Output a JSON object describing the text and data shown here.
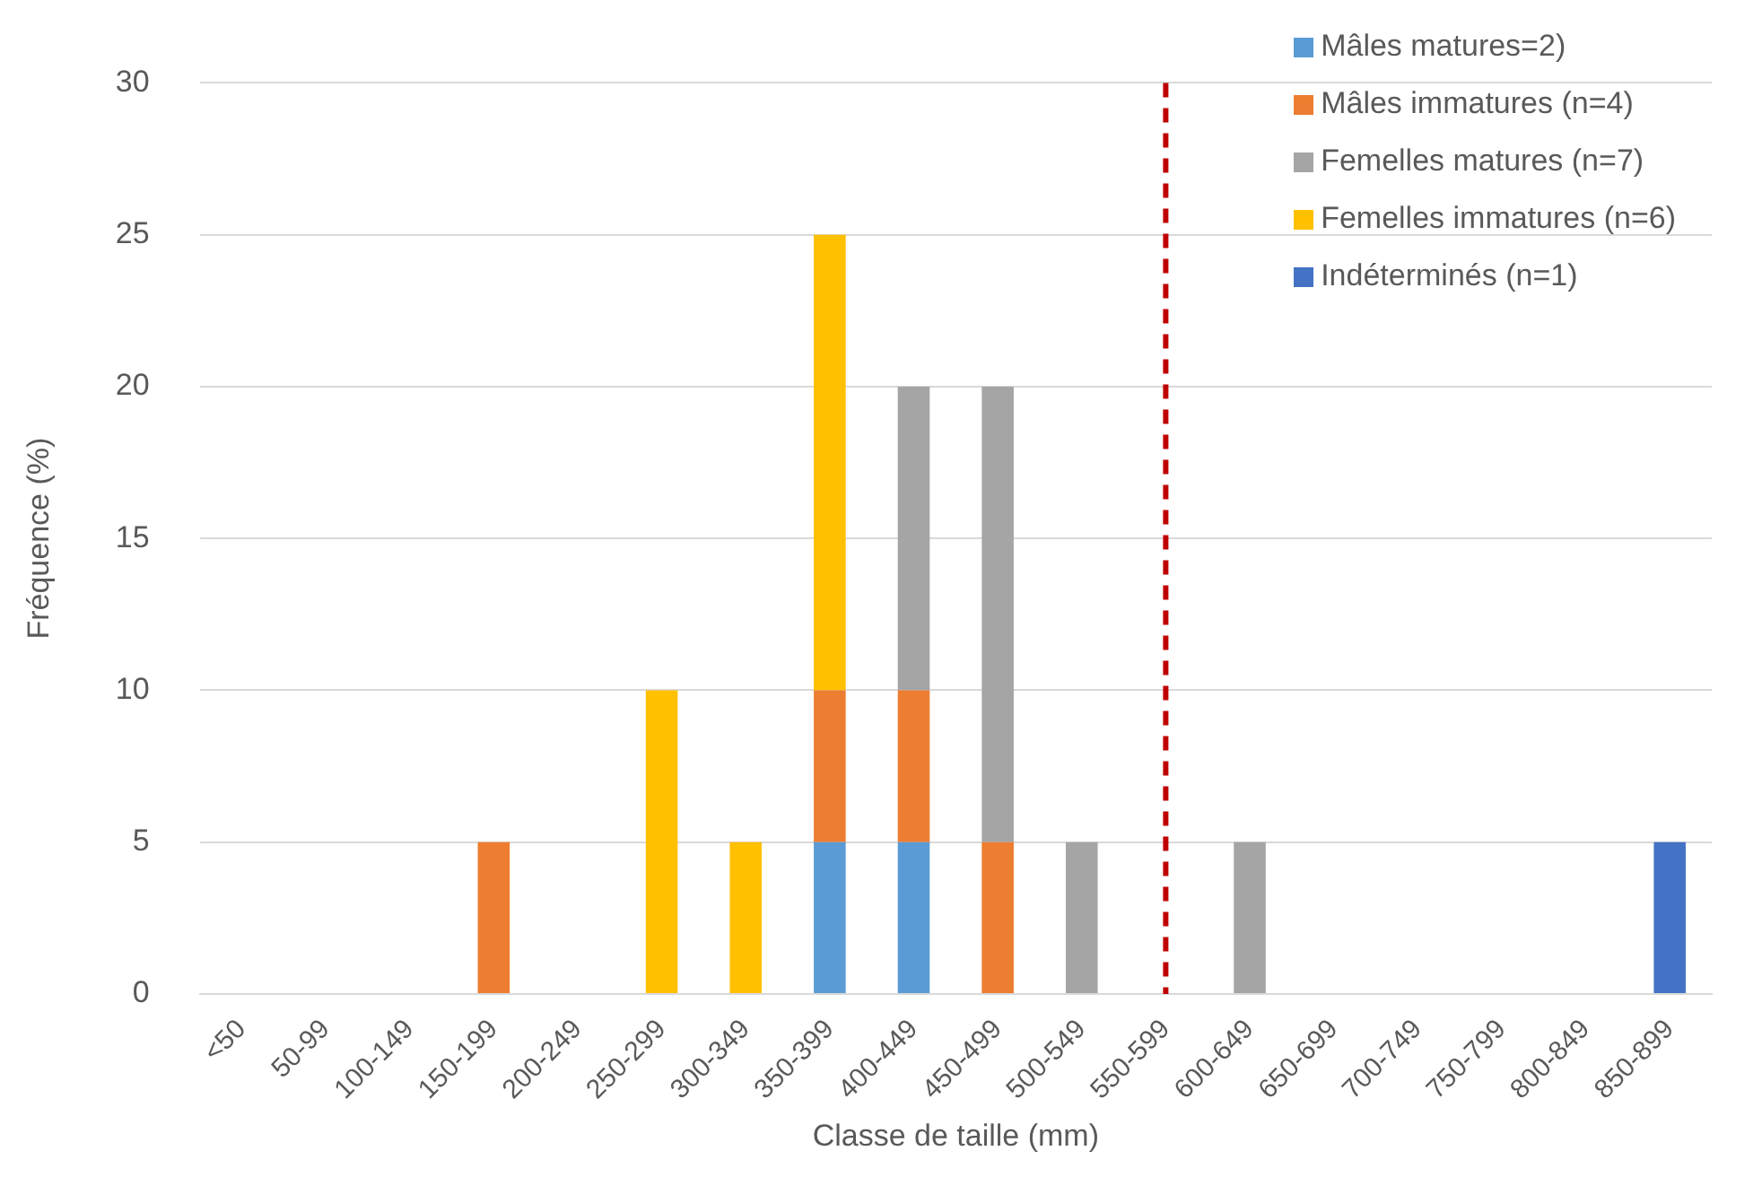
{
  "chart_data": {
    "type": "bar",
    "stacked": true,
    "xlabel": "Classe de taille (mm)",
    "ylabel": "Fréquence (%)",
    "categories": [
      "<50",
      "50-99",
      "100-149",
      "150-199",
      "200-249",
      "250-299",
      "300-349",
      "350-399",
      "400-449",
      "450-499",
      "500-549",
      "550-599",
      "600-649",
      "650-699",
      "700-749",
      "750-799",
      "800-849",
      "850-899"
    ],
    "series": [
      {
        "name": "Mâles matures=2)",
        "color": "#5b9bd5",
        "values": [
          0,
          0,
          0,
          0,
          0,
          0,
          0,
          5,
          5,
          0,
          0,
          0,
          0,
          0,
          0,
          0,
          0,
          0
        ]
      },
      {
        "name": "Mâles immatures (n=4)",
        "color": "#ed7d31",
        "values": [
          0,
          0,
          0,
          5,
          0,
          0,
          0,
          5,
          5,
          5,
          0,
          0,
          0,
          0,
          0,
          0,
          0,
          0
        ]
      },
      {
        "name": "Femelles matures (n=7)",
        "color": "#a5a5a5",
        "values": [
          0,
          0,
          0,
          0,
          0,
          0,
          0,
          0,
          10,
          15,
          5,
          0,
          5,
          0,
          0,
          0,
          0,
          0
        ]
      },
      {
        "name": "Femelles immatures (n=6)",
        "color": "#ffc000",
        "values": [
          0,
          0,
          0,
          0,
          0,
          10,
          5,
          15,
          0,
          0,
          0,
          0,
          0,
          0,
          0,
          0,
          0,
          0
        ]
      },
      {
        "name": "Indéterminés (n=1)",
        "color": "#4472c4",
        "values": [
          0,
          0,
          0,
          0,
          0,
          0,
          0,
          0,
          0,
          0,
          0,
          0,
          0,
          0,
          0,
          0,
          0,
          5
        ]
      }
    ],
    "ylim": [
      0,
      30
    ],
    "yticks": [
      0,
      5,
      10,
      15,
      20,
      25,
      30
    ],
    "grid": "y",
    "legend": "top right",
    "ref_lines": [
      {
        "axis": "x",
        "value": "550-599",
        "color": "#c00000",
        "line_style": "dashed"
      }
    ]
  }
}
